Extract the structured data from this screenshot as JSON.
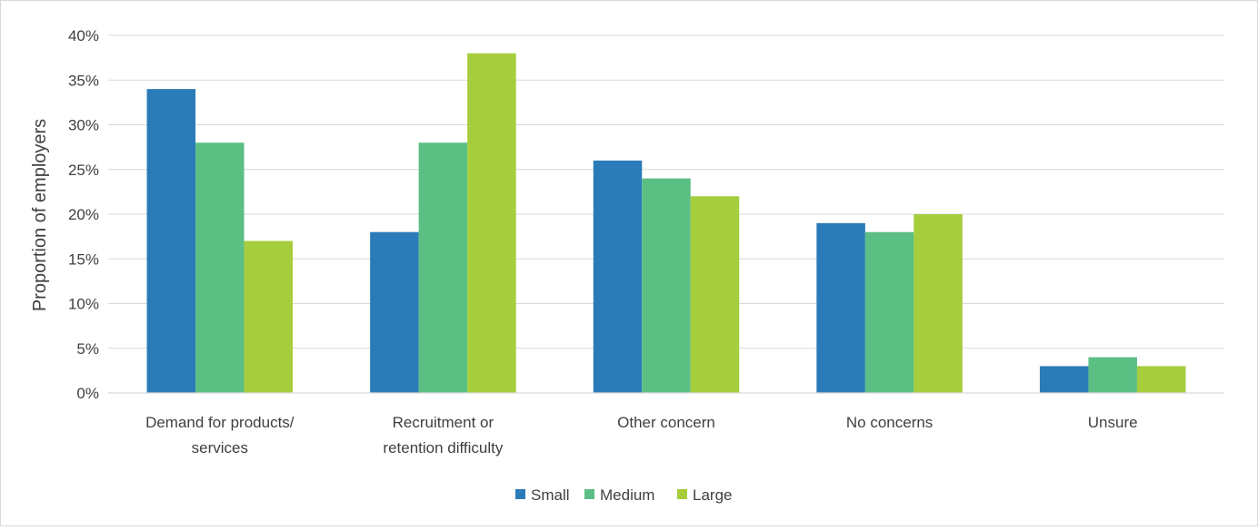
{
  "chart_data": {
    "type": "bar",
    "title": "",
    "xlabel": "",
    "ylabel": "Proportion of employers",
    "ylim": [
      0,
      40
    ],
    "y_ticks": [
      "0%",
      "5%",
      "10%",
      "15%",
      "20%",
      "25%",
      "30%",
      "35%",
      "40%"
    ],
    "y_tick_values": [
      0,
      5,
      10,
      15,
      20,
      25,
      30,
      35,
      40
    ],
    "grid": true,
    "legend_position": "bottom",
    "categories": [
      [
        "Demand for products/",
        "services"
      ],
      [
        "Recruitment or",
        "retention difficulty"
      ],
      [
        "Other concern"
      ],
      [
        "No concerns"
      ],
      [
        "Unsure"
      ]
    ],
    "series": [
      {
        "name": "Small",
        "color": "#2b7bb9",
        "values": [
          34,
          18,
          26,
          19,
          3
        ]
      },
      {
        "name": "Medium",
        "color": "#5bbf84",
        "values": [
          28,
          28,
          24,
          18,
          4
        ]
      },
      {
        "name": "Large",
        "color": "#a5cd3c",
        "values": [
          17,
          38,
          22,
          20,
          3
        ]
      }
    ]
  }
}
